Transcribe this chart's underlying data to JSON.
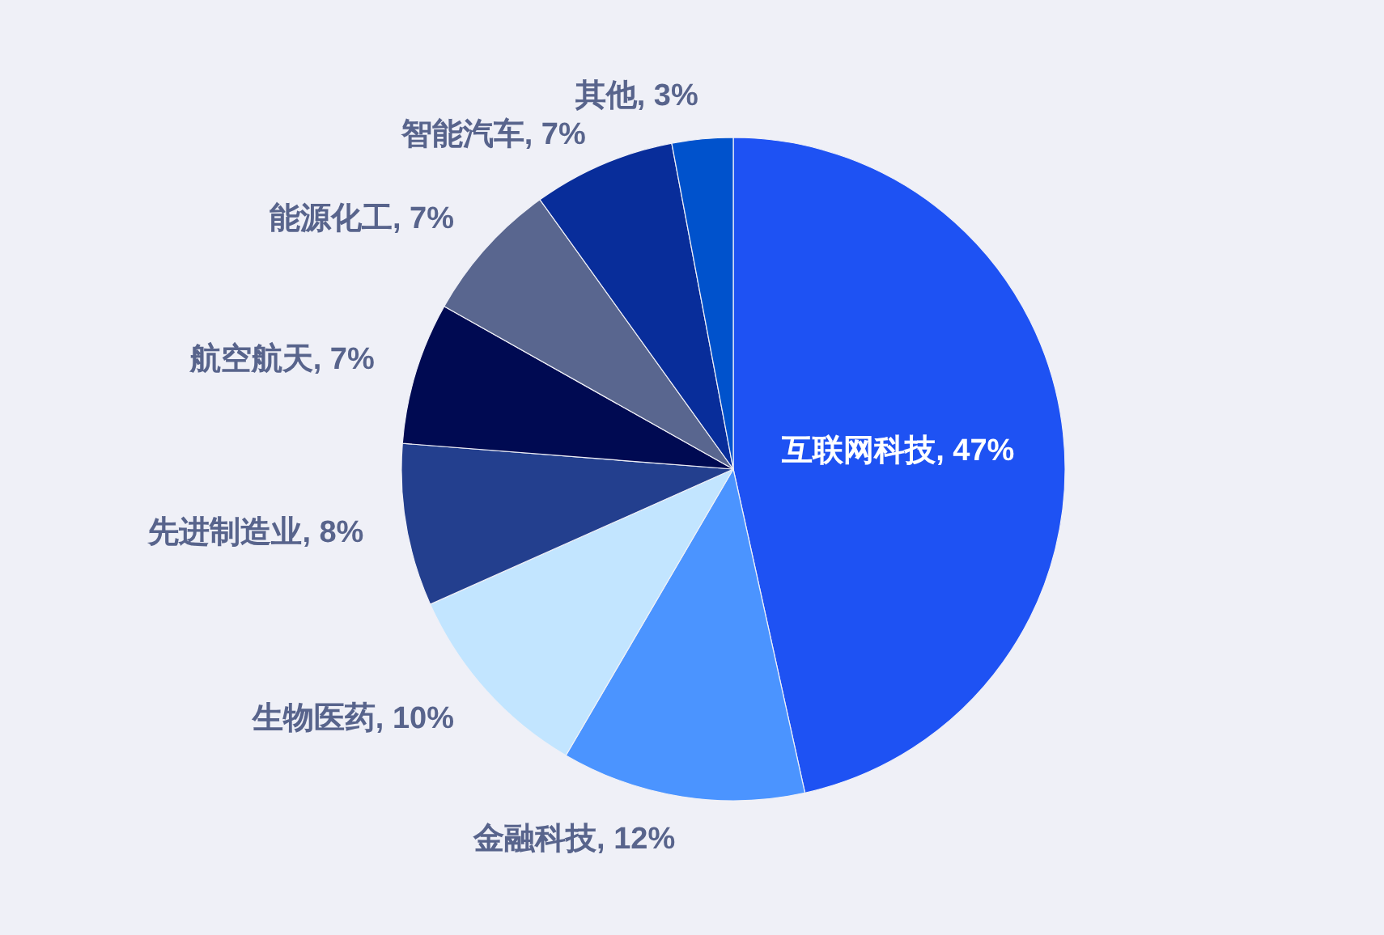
{
  "chart_data": {
    "type": "pie",
    "categories": [
      "互联网科技",
      "金融科技",
      "生物医药",
      "先进制造业",
      "航空航天",
      "能源化工",
      "智能汽车",
      "其他"
    ],
    "values": [
      47,
      12,
      10,
      8,
      7,
      7,
      7,
      3
    ],
    "colors": [
      "#1e52f3",
      "#4b94ff",
      "#c2e5ff",
      "#233f8e",
      "#000a52",
      "#59668f",
      "#082d9a",
      "#0052cc"
    ],
    "value_labels": [
      "47%",
      "12%",
      "10%",
      "8%",
      "7%",
      "7%",
      "7%",
      "3%"
    ]
  }
}
